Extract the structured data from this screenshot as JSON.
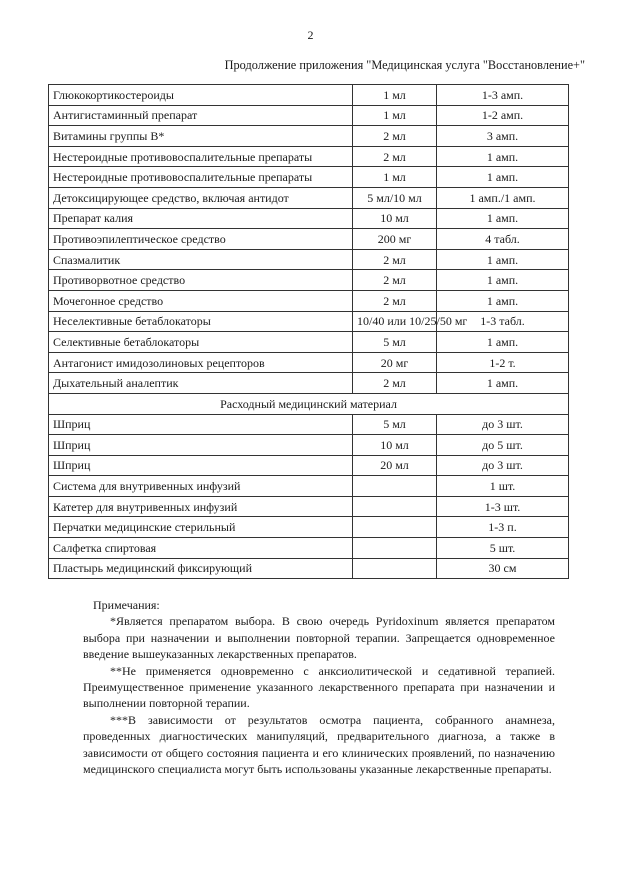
{
  "page_number": "2",
  "subtitle": "Продолжение приложения \"Медицинская услуга \"Восстановление+\"",
  "rows": [
    [
      "Глюкокортикостероиды",
      "1 мл",
      "1-3 амп."
    ],
    [
      "Антигистаминный препарат",
      "1 мл",
      "1-2 амп."
    ],
    [
      "Витамины группы В*",
      "2 мл",
      "3 амп."
    ],
    [
      "Нестероидные противовоспалительные препараты",
      "2 мл",
      "1 амп."
    ],
    [
      "Нестероидные противовоспалительные препараты",
      "1 мл",
      "1 амп."
    ],
    [
      "Детоксицирующее средство, включая антидот",
      "5 мл/10 мл",
      "1 амп./1 амп."
    ],
    [
      "Препарат калия",
      "10 мл",
      "1 амп."
    ],
    [
      "Противоэпилептическое средство",
      "200 мг",
      "4 табл."
    ],
    [
      "Спазмалитик",
      "2 мл",
      "1 амп."
    ],
    [
      "Противорвотное средство",
      "2 мл",
      "1 амп."
    ],
    [
      "Мочегонное средство",
      "2 мл",
      "1 амп."
    ],
    [
      "Неселективные бетаблокаторы",
      "10/40 или 10/25/50 мг",
      "1-3 табл."
    ],
    [
      "Селективные бетаблокаторы",
      "5 мл",
      "1 амп."
    ],
    [
      "Антагонист имидозолиновых рецепторов",
      "20 мг",
      "1-2 т."
    ],
    [
      "Дыхательный аналептик",
      "2 мл",
      "1 амп."
    ]
  ],
  "section_title": "Расходный медицинский материал",
  "rows2": [
    [
      "Шприц",
      "5 мл",
      "до 3 шт."
    ],
    [
      "Шприц",
      "10 мл",
      "до 5 шт."
    ],
    [
      "Шприц",
      "20 мл",
      "до 3 шт."
    ],
    [
      "Система для внутривенных инфузий",
      "",
      "1 шт."
    ],
    [
      "Катетер для внутривенных инфузий",
      "",
      "1-3 шт."
    ],
    [
      "Перчатки медицинские стерильный",
      "",
      "1-3 п."
    ],
    [
      "Салфетка спиртовая",
      "",
      "5 шт."
    ],
    [
      "Пластырь медицинский фиксирующий",
      "",
      "30 см"
    ]
  ],
  "notes": {
    "heading": "Примечания:",
    "paragraphs": [
      "*Является препаратом выбора. В свою очередь Pyridoxinum является препаратом выбора при назначении и выполнении повторной терапии. Запрещается одновременное введение вышеуказанных лекарственных препаратов.",
      "**Не применяется одновременно с анксиолитической и седативной терапией. Преимущественное применение указанного лекарственного препарата при назначении и выполнении повторной терапии.",
      "***В зависимости от результатов осмотра пациента, собранного анамнеза, проведенных диагностических манипуляций, предварительного диагноза, а также в зависимости от общего состояния пациента и его клинических проявлений, по назначению медицинского специалиста могут быть использованы указанные лекарственные препараты."
    ]
  }
}
